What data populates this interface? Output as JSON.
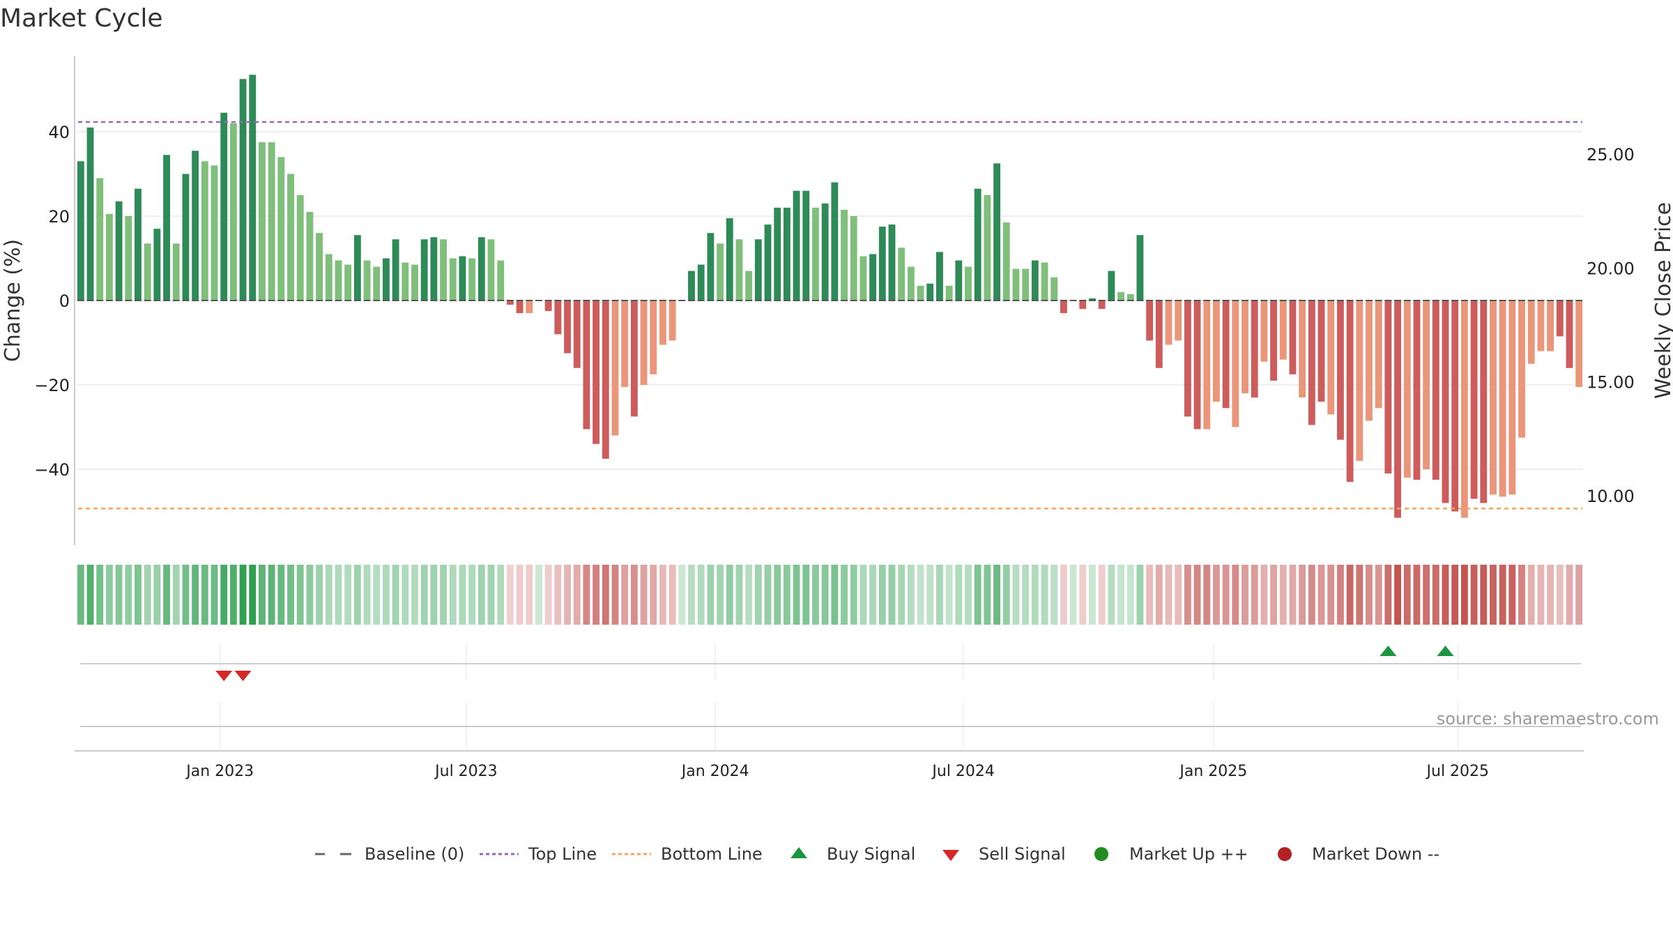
{
  "chart_data": {
    "type": "bar",
    "title": "Market Cycle",
    "ylabel_left": "Change (%)",
    "ylabel_right": "Weekly Close Price",
    "left_ylim": [
      -58,
      58
    ],
    "left_ticks": [
      40,
      20,
      0,
      -20,
      -40
    ],
    "left_tick_labels": [
      "40",
      "20",
      "0",
      "−20",
      "−40"
    ],
    "right_ylim": [
      7.85,
      29.35
    ],
    "right_ticks": [
      25,
      20,
      15,
      10
    ],
    "right_tick_labels": [
      "25.00",
      "20.00",
      "15.00",
      "10.00"
    ],
    "top_line": 42.3,
    "bottom_line": -49.3,
    "x_tick_labels": [
      "Jan 2023",
      "Jul 2023",
      "Jan 2024",
      "Jul 2024",
      "Jan 2025",
      "Jul 2025"
    ],
    "x_tick_week_index": [
      14.6,
      40.4,
      66.5,
      92.5,
      118.7,
      144.3
    ],
    "values": [
      33,
      41,
      29,
      20.5,
      23.5,
      20,
      26.5,
      13.5,
      17,
      34.5,
      13.5,
      30,
      35.5,
      33,
      32,
      44.5,
      42,
      52.5,
      53.5,
      37.5,
      37.5,
      34,
      30,
      25,
      21,
      16,
      11,
      9.5,
      8.5,
      15.5,
      9.5,
      8,
      10,
      14.5,
      9,
      8.5,
      14.5,
      15,
      14.5,
      10,
      10.5,
      10,
      15,
      14.5,
      9.5,
      -1,
      -3,
      -3,
      0,
      -2.5,
      -8,
      -12.5,
      -16,
      -30.5,
      -34,
      -37.5,
      -32,
      -20.5,
      -27.5,
      -20,
      -17.5,
      -10.5,
      -9.5,
      0,
      7,
      8.5,
      16,
      13.5,
      19.5,
      14.5,
      7,
      14.5,
      18,
      22,
      22,
      26,
      26,
      22,
      23,
      28,
      21.5,
      20,
      10.5,
      11,
      17.5,
      18,
      12.5,
      8,
      3.5,
      4,
      11.5,
      3.5,
      9.5,
      8,
      26.5,
      25,
      32.5,
      18.5,
      7.5,
      7.5,
      9.5,
      9,
      5.5,
      -3,
      0,
      -2,
      0.5,
      -2,
      7,
      2,
      1.5,
      15.5,
      -9.5,
      -16,
      -10.5,
      -9.5,
      -27.5,
      -30.5,
      -30.5,
      -24,
      -25.5,
      -30,
      -22,
      -23,
      -14.5,
      -19,
      -14,
      -17.5,
      -23,
      -29.5,
      -24,
      -27,
      -33,
      -43,
      -38,
      -28.5,
      -25.5,
      -41,
      -51.5,
      -42,
      -42.5,
      -40,
      -42.5,
      -48,
      -50,
      -51.5,
      -47,
      -48,
      -46,
      -46.5,
      -46,
      -32.5,
      -15,
      -12,
      -12,
      -8.5,
      -16,
      -20.5
    ],
    "shades": [
      "d",
      "d",
      "l",
      "l",
      "d",
      "l",
      "d",
      "l",
      "d",
      "d",
      "l",
      "d",
      "d",
      "l",
      "l",
      "d",
      "l",
      "d",
      "d",
      "l",
      "l",
      "l",
      "l",
      "l",
      "l",
      "l",
      "l",
      "l",
      "l",
      "d",
      "l",
      "l",
      "d",
      "d",
      "l",
      "l",
      "d",
      "d",
      "l",
      "l",
      "d",
      "l",
      "d",
      "l",
      "l",
      "d",
      "d",
      "l",
      "d",
      "d",
      "d",
      "d",
      "d",
      "d",
      "d",
      "d",
      "l",
      "l",
      "d",
      "l",
      "l",
      "l",
      "l",
      "l",
      "d",
      "d",
      "d",
      "l",
      "d",
      "l",
      "l",
      "d",
      "d",
      "d",
      "d",
      "d",
      "d",
      "l",
      "d",
      "d",
      "l",
      "l",
      "l",
      "d",
      "d",
      "d",
      "l",
      "l",
      "l",
      "d",
      "d",
      "l",
      "d",
      "l",
      "d",
      "l",
      "d",
      "l",
      "l",
      "l",
      "d",
      "l",
      "l",
      "d",
      "l",
      "d",
      "d",
      "d",
      "d",
      "l",
      "l",
      "d",
      "d",
      "d",
      "l",
      "l",
      "d",
      "d",
      "l",
      "l",
      "d",
      "l",
      "l",
      "d",
      "l",
      "d",
      "l",
      "d",
      "l",
      "d",
      "d",
      "l",
      "d",
      "d",
      "l",
      "l",
      "l",
      "d",
      "d",
      "l",
      "d",
      "l",
      "d",
      "d",
      "d",
      "l",
      "d",
      "d",
      "l",
      "l",
      "l",
      "l",
      "l",
      "l",
      "l",
      "d",
      "d"
    ],
    "weekly_close_price": [],
    "sell_signals_week_index": [
      15,
      17
    ],
    "buy_signals_week_index": [
      137,
      143
    ],
    "colors": {
      "green_dark": "#2e8b57",
      "green_light": "#7fbf7b",
      "red_dark": "#cd5c5c",
      "red_light": "#e9967a",
      "top_line": "#9467bd",
      "bottom_line": "#f4a460",
      "buy_signal": "#1a9641",
      "sell_signal": "#d62728",
      "market_up": "#228b22",
      "market_down": "#b22222"
    }
  },
  "legend": {
    "baseline": "Baseline (0)",
    "top_line": "Top Line",
    "bottom_line": "Bottom Line",
    "buy_signal": "Buy Signal",
    "sell_signal": "Sell Signal",
    "market_up": "Market Up ++",
    "market_down": "Market Down --"
  },
  "source": "source: sharemaestro.com"
}
